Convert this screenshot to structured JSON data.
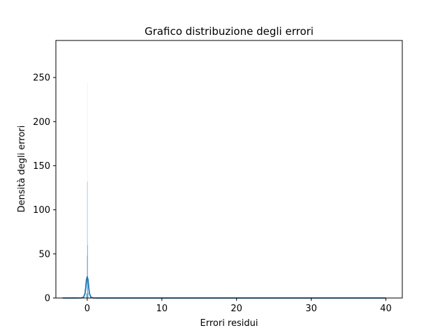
{
  "chart_data": {
    "type": "histogram",
    "title": "Grafico distribuzione degli errori",
    "xlabel": "Errori residui",
    "ylabel": "Densità degli errori",
    "xlim": [
      -4.2,
      42.2
    ],
    "ylim": [
      0,
      292
    ],
    "x_ticks": [
      0,
      10,
      20,
      30,
      40
    ],
    "y_ticks": [
      0,
      50,
      100,
      150,
      200,
      250
    ],
    "grid": false,
    "legend": "none",
    "histogram": {
      "bins": [
        {
          "x0": -3.3,
          "x1": -0.15,
          "value": 0.3
        },
        {
          "x0": -0.15,
          "x1": -0.03,
          "value": 5
        },
        {
          "x0": -0.03,
          "x1": -0.01,
          "value": 48
        },
        {
          "x0": -0.01,
          "x1": 0.01,
          "value": 132
        },
        {
          "x0": 0.01,
          "x1": 0.03,
          "value": 244
        },
        {
          "x0": 0.03,
          "x1": 0.05,
          "value": 60
        },
        {
          "x0": 0.05,
          "x1": 0.15,
          "value": 6
        },
        {
          "x0": 0.15,
          "x1": 40.0,
          "value": 0.2
        }
      ]
    },
    "kde": {
      "x": [
        -3.3,
        -1.5,
        -0.8,
        -0.5,
        -0.3,
        -0.2,
        -0.1,
        0.0,
        0.1,
        0.2,
        0.3,
        0.5,
        0.8,
        1.5,
        5,
        10,
        20,
        30,
        40
      ],
      "y": [
        0,
        0,
        0.1,
        0.8,
        5,
        12,
        21,
        24,
        21,
        12,
        5,
        0.8,
        0.1,
        0,
        0,
        0,
        0,
        0,
        0
      ]
    },
    "colors": {
      "bars": "#1f77b4",
      "kde": "#1f77b4"
    }
  }
}
